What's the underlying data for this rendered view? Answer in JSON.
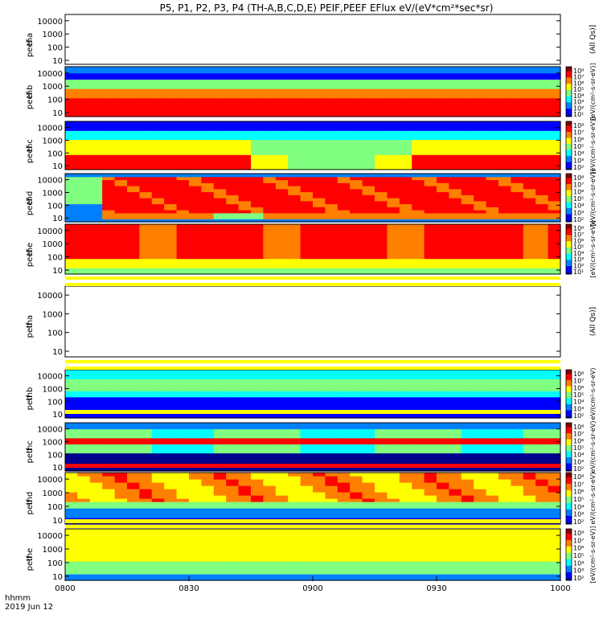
{
  "title": "P5, P1, P2, P3, P4 (TH-A,B,C,D,E) PEIF,PEEF EFlux eV/(eV*cm²*sec*sr)",
  "time_label_1": "hhmm",
  "time_label_2": "2019 Jun 12",
  "colors": {
    "jet": [
      "#00008f",
      "#0000ff",
      "#0080ff",
      "#00ffff",
      "#80ff80",
      "#ffff00",
      "#ff8000",
      "#ff0000",
      "#800000"
    ],
    "bar_yellow": "#ffff00",
    "bar_red": "#ff0000"
  },
  "chart_data": {
    "type": "heatmap",
    "x_ticks": [
      "0800",
      "0830",
      "0900",
      "0930",
      "1000"
    ],
    "xlim": [
      "0800",
      "1000"
    ],
    "y_ticks": [
      "10",
      "100",
      "1000",
      "10000"
    ],
    "ylim": [
      5,
      30000
    ],
    "yscale": "log",
    "panels": [
      {
        "label": "tha peef",
        "empty": true,
        "cbar": null,
        "side": "(All Qs)]",
        "cbar_text": ""
      },
      {
        "label": "thb peef",
        "empty": false,
        "pattern": "thb_e",
        "cbar": [
          "10⁸",
          "10⁷",
          "10⁶",
          "10⁵",
          "10⁴",
          "10³",
          "10²",
          "10¹"
        ],
        "side": "",
        "cbar_text": "[eV/(cm²-s-sr-eV)]"
      },
      {
        "label": "thc peef",
        "empty": false,
        "pattern": "thc_e",
        "cbar": [
          "10⁸",
          "10⁷",
          "10⁶",
          "10⁵",
          "10⁴",
          "10³",
          "10²"
        ],
        "side": "",
        "cbar_text": "[eV/(cm²-s-sr-eV)]"
      },
      {
        "label": "thd peef",
        "empty": false,
        "pattern": "thd_e",
        "cbar": [
          "10⁸",
          "10⁷",
          "10⁶",
          "10⁵",
          "10⁴",
          "10³",
          "10²"
        ],
        "side": "",
        "cbar_text": "[eV/(cm²-s-sr-eV)]"
      },
      {
        "label": "the peef",
        "empty": false,
        "pattern": "the_e",
        "cbar": [
          "10⁸",
          "10⁷",
          "10⁶",
          "10⁵",
          "10⁴",
          "10³",
          "10²",
          "10¹"
        ],
        "side": "",
        "cbar_text": "[eV/(cm²-s-sr-eV)]"
      },
      {
        "label": "tha peif",
        "empty": true,
        "cbar": null,
        "side": "(All Qs)]",
        "cbar_text": ""
      },
      {
        "label": "thb peif",
        "empty": false,
        "pattern": "thb_i",
        "cbar": [
          "10⁸",
          "10⁷",
          "10⁶",
          "10⁵",
          "10⁴",
          "10³",
          "10²"
        ],
        "side": "",
        "cbar_text": "eV/(cm²-s-sr-eV)"
      },
      {
        "label": "thc peif",
        "empty": false,
        "pattern": "thc_i",
        "cbar": [
          "10⁸",
          "10⁷",
          "10⁶",
          "10⁵",
          "10⁴",
          "10³",
          "10²"
        ],
        "side": "",
        "cbar_text": "eV/(cm²-s-sr-eV)"
      },
      {
        "label": "thd peif",
        "empty": false,
        "pattern": "thd_i",
        "cbar": [
          "10⁸",
          "10⁷",
          "10⁶",
          "10⁵",
          "10⁴",
          "10³",
          "10²"
        ],
        "side": "",
        "cbar_text": "eV/(cm²-s-sr-eV)"
      },
      {
        "label": "the peif",
        "empty": false,
        "pattern": "the_i",
        "cbar": [
          "10⁸",
          "10⁷",
          "10⁶",
          "10⁵",
          "10⁴",
          "10³",
          "10²"
        ],
        "side": "",
        "cbar_text": "[eV/(cm²-s-sr-eV)]"
      }
    ]
  }
}
